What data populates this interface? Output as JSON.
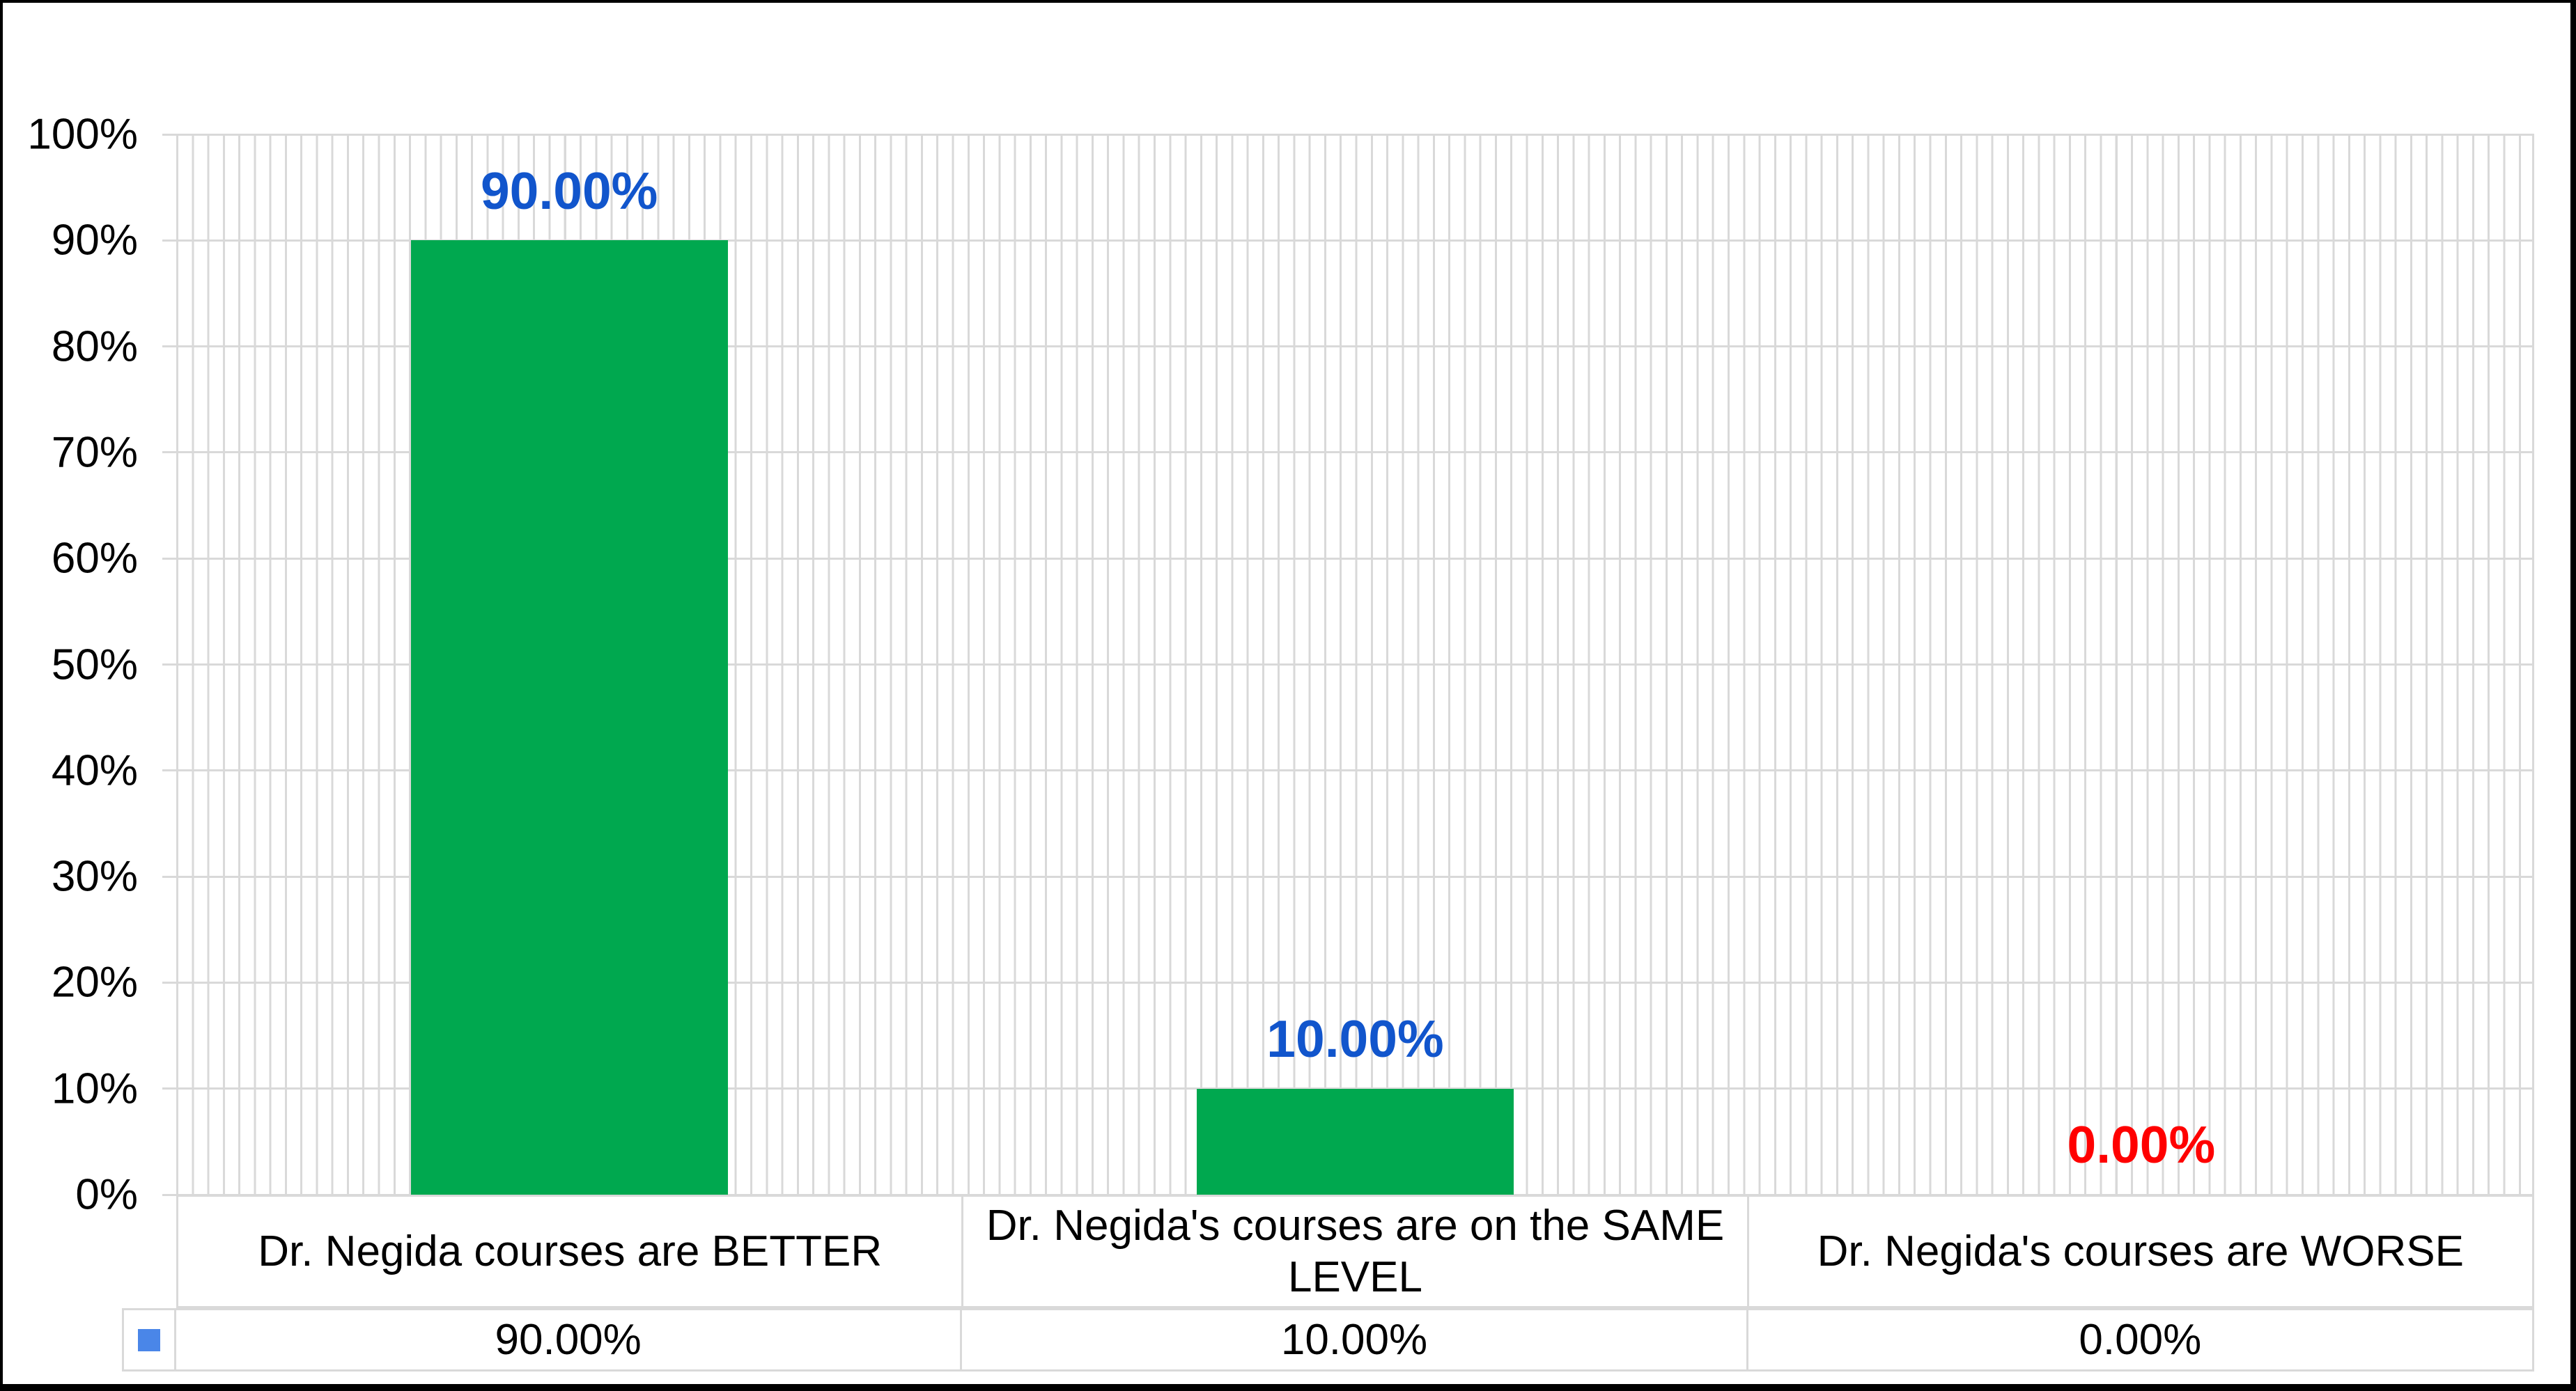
{
  "chart_data": {
    "type": "bar",
    "title": "",
    "categories": [
      "Dr. Negida courses are BETTER",
      "Dr. Negida's courses are on the SAME LEVEL",
      "Dr. Negida's courses are WORSE"
    ],
    "values": [
      90,
      10,
      0
    ],
    "value_labels": [
      "90.00%",
      "10.00%",
      "0.00%"
    ],
    "value_label_colors": [
      "#1155CC",
      "#1155CC",
      "#FF0000"
    ],
    "table_values": [
      "90.00%",
      "10.00%",
      "0.00%"
    ],
    "ylabel": "",
    "xlabel": "",
    "ylim": [
      0,
      100
    ],
    "ytick_labels": [
      "100%",
      "90%",
      "80%",
      "70%",
      "60%",
      "50%",
      "40%",
      "30%",
      "20%",
      "10%",
      "0%"
    ],
    "grid": "horizontal major lines + dense vertical minor lines",
    "legend_position": "table-left-swatch",
    "colors": {
      "bar": "#00A84F",
      "data_label": "#1155CC",
      "data_label_zero": "#FF0000",
      "legend_marker": "#4A86E8",
      "gridline": "#D9D9D9",
      "axis_text": "#000000",
      "border": "#000000",
      "background": "#FFFFFF"
    }
  }
}
